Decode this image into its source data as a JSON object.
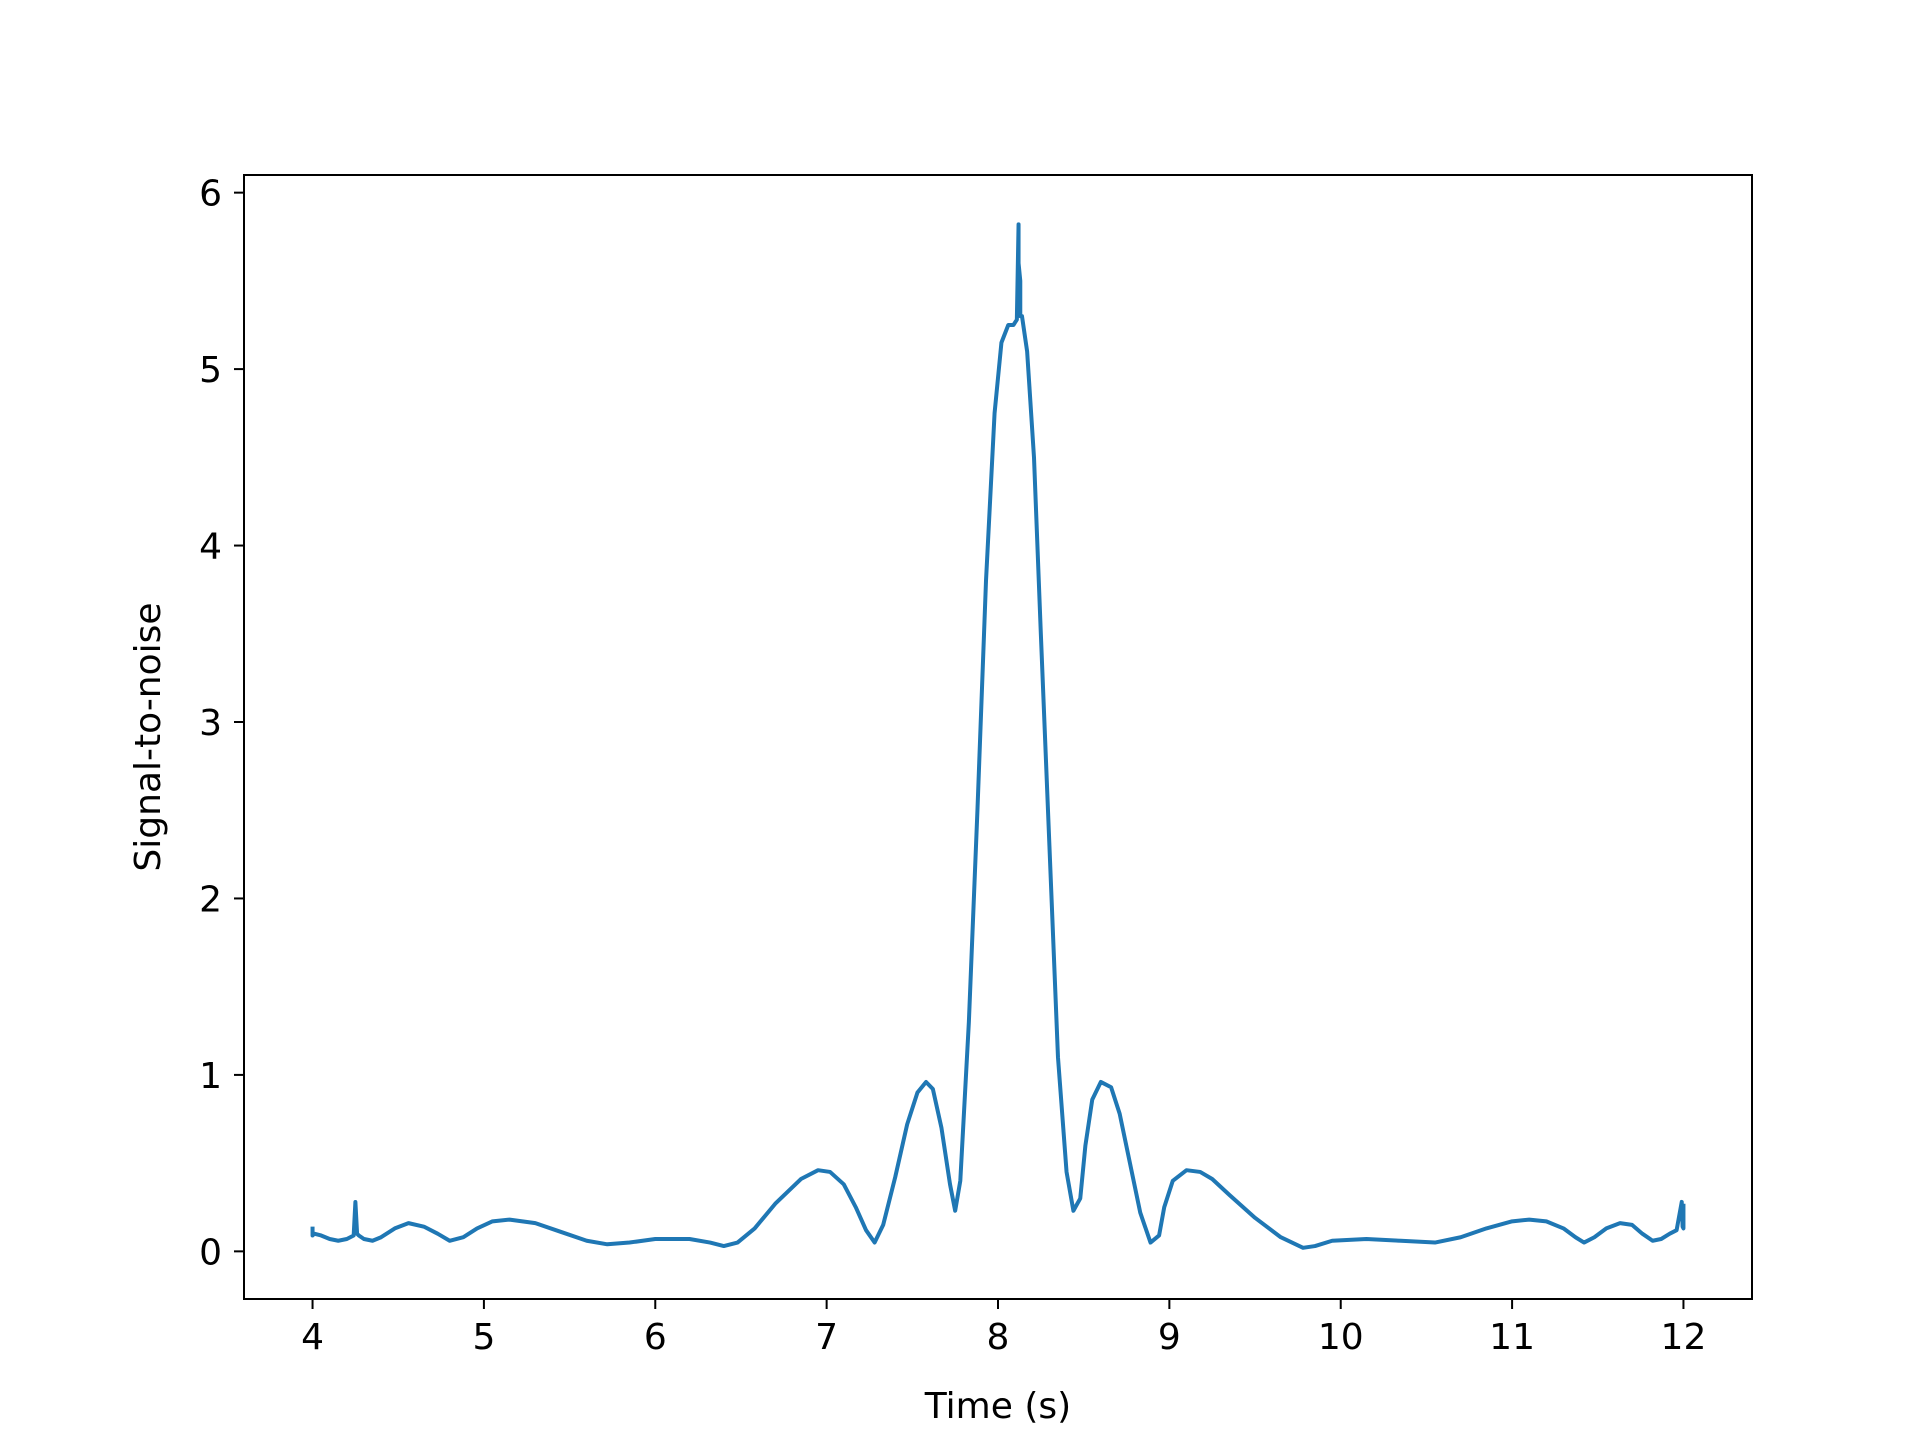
{
  "chart_data": {
    "type": "line",
    "title": "",
    "xlabel": "Time (s)",
    "ylabel": "Signal-to-noise",
    "xlim": [
      3.6,
      12.4
    ],
    "ylim": [
      -0.27,
      6.1
    ],
    "xticks": [
      4,
      5,
      6,
      7,
      8,
      9,
      10,
      11,
      12
    ],
    "xtick_labels": [
      "4",
      "5",
      "6",
      "7",
      "8",
      "9",
      "10",
      "11",
      "12"
    ],
    "yticks": [
      0,
      1,
      2,
      3,
      4,
      5,
      6
    ],
    "ytick_labels": [
      "0",
      "1",
      "2",
      "3",
      "4",
      "5",
      "6"
    ],
    "grid": false,
    "legend": "none",
    "series": [
      {
        "color": "#1f77b4",
        "x": [
          4.0,
          4.0,
          4.01,
          4.05,
          4.1,
          4.15,
          4.2,
          4.24,
          4.25,
          4.26,
          4.27,
          4.3,
          4.35,
          4.4,
          4.48,
          4.56,
          4.65,
          4.73,
          4.8,
          4.88,
          4.96,
          5.05,
          5.15,
          5.3,
          5.45,
          5.6,
          5.72,
          5.85,
          6.0,
          6.1,
          6.2,
          6.32,
          6.4,
          6.48,
          6.58,
          6.7,
          6.85,
          6.95,
          7.02,
          7.1,
          7.17,
          7.23,
          7.28,
          7.33,
          7.4,
          7.47,
          7.53,
          7.58,
          7.62,
          7.67,
          7.72,
          7.75,
          7.78,
          7.83,
          7.88,
          7.93,
          7.98,
          8.02,
          8.06,
          8.09,
          8.11,
          8.12,
          8.12,
          8.13,
          8.13,
          8.14,
          8.17,
          8.21,
          8.25,
          8.3,
          8.35,
          8.4,
          8.44,
          8.48,
          8.51,
          8.55,
          8.6,
          8.66,
          8.71,
          8.77,
          8.83,
          8.89,
          8.94,
          8.97,
          9.02,
          9.1,
          9.18,
          9.25,
          9.35,
          9.5,
          9.65,
          9.78,
          9.85,
          9.95,
          10.15,
          10.35,
          10.55,
          10.7,
          10.85,
          11.0,
          11.1,
          11.2,
          11.3,
          11.37,
          11.42,
          11.48,
          11.55,
          11.63,
          11.7,
          11.76,
          11.82,
          11.87,
          11.92,
          11.96,
          11.99,
          11.995,
          12.0,
          12.0
        ],
        "y": [
          0.14,
          0.09,
          0.1,
          0.09,
          0.07,
          0.06,
          0.07,
          0.09,
          0.28,
          0.1,
          0.09,
          0.07,
          0.06,
          0.08,
          0.13,
          0.16,
          0.14,
          0.1,
          0.06,
          0.08,
          0.13,
          0.17,
          0.18,
          0.16,
          0.11,
          0.06,
          0.04,
          0.05,
          0.07,
          0.07,
          0.07,
          0.05,
          0.03,
          0.05,
          0.13,
          0.27,
          0.41,
          0.46,
          0.45,
          0.38,
          0.25,
          0.12,
          0.05,
          0.15,
          0.42,
          0.72,
          0.9,
          0.96,
          0.92,
          0.7,
          0.38,
          0.23,
          0.4,
          1.3,
          2.5,
          3.8,
          4.75,
          5.15,
          5.25,
          5.25,
          5.28,
          5.82,
          5.6,
          5.5,
          5.3,
          5.3,
          5.1,
          4.5,
          3.5,
          2.3,
          1.1,
          0.45,
          0.23,
          0.3,
          0.6,
          0.86,
          0.96,
          0.93,
          0.78,
          0.5,
          0.22,
          0.05,
          0.09,
          0.25,
          0.4,
          0.46,
          0.45,
          0.41,
          0.32,
          0.19,
          0.08,
          0.02,
          0.03,
          0.06,
          0.07,
          0.06,
          0.05,
          0.08,
          0.13,
          0.17,
          0.18,
          0.17,
          0.13,
          0.08,
          0.05,
          0.08,
          0.13,
          0.16,
          0.15,
          0.1,
          0.06,
          0.07,
          0.1,
          0.12,
          0.28,
          0.14,
          0.13,
          0.27
        ]
      }
    ]
  }
}
